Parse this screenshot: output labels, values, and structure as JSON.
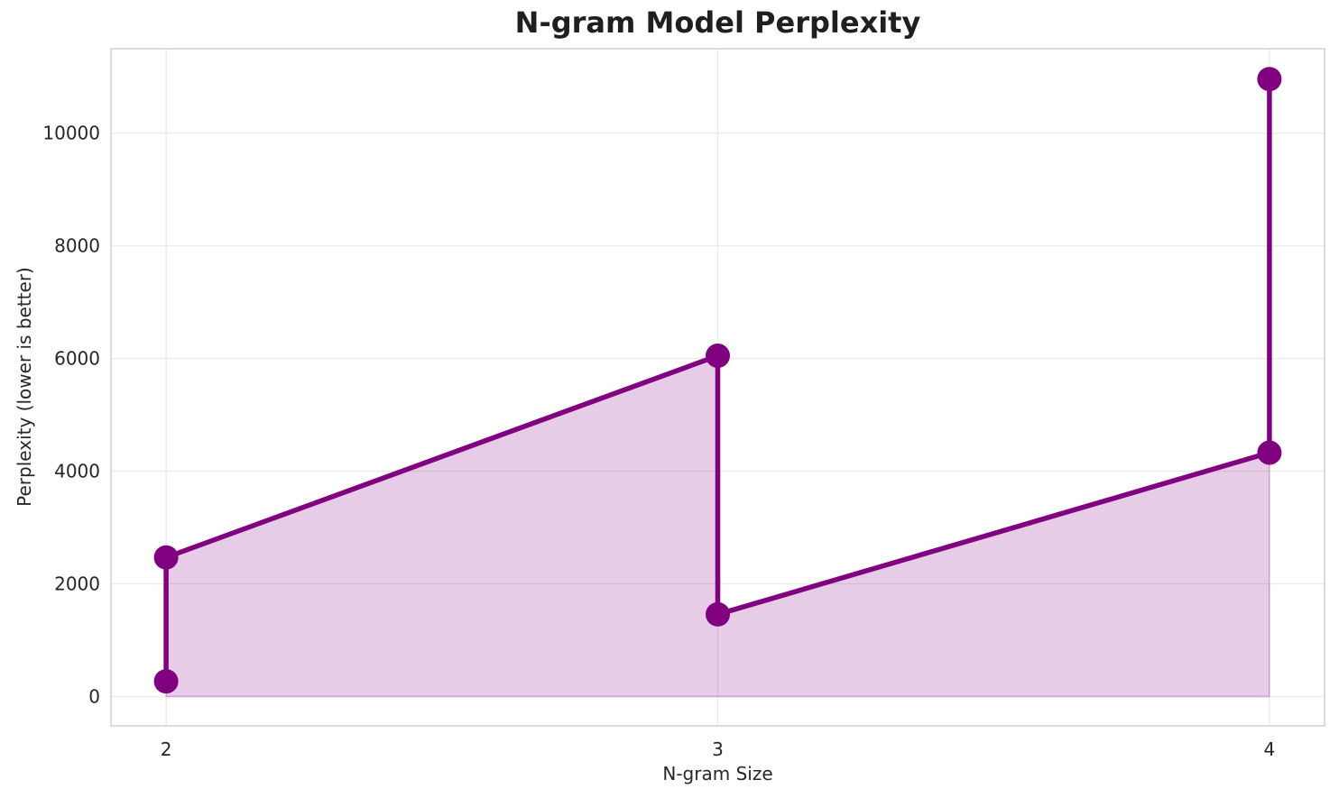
{
  "chart_data": {
    "type": "line",
    "title": "N-gram Model Perplexity",
    "xlabel": "N-gram Size",
    "ylabel": "Perplexity (lower is better)",
    "x": [
      2,
      2,
      3,
      3,
      4,
      4
    ],
    "y": [
      270,
      2470,
      6050,
      1460,
      4330,
      10960
    ],
    "xticks": [
      2,
      3,
      4
    ],
    "yticks": [
      0,
      2000,
      4000,
      6000,
      8000,
      10000
    ],
    "ytick_labels": [
      "0",
      "2000",
      "4000",
      "6000",
      "8000",
      "10000"
    ],
    "xtick_labels": [
      "2",
      "3",
      "4"
    ],
    "xlim": [
      1.9,
      4.1
    ],
    "ylim": [
      -520,
      11500
    ],
    "fill_baseline": 0,
    "grid": true,
    "legend": "none",
    "marker": "circle",
    "line_color": "#800080",
    "fill_color": "#800080",
    "fill_opacity": 0.2,
    "grid_color": "#ebebeb",
    "spine_color": "#d0d0d0",
    "tick_text_color": "#262626",
    "title_color": "#1f1f1f"
  }
}
